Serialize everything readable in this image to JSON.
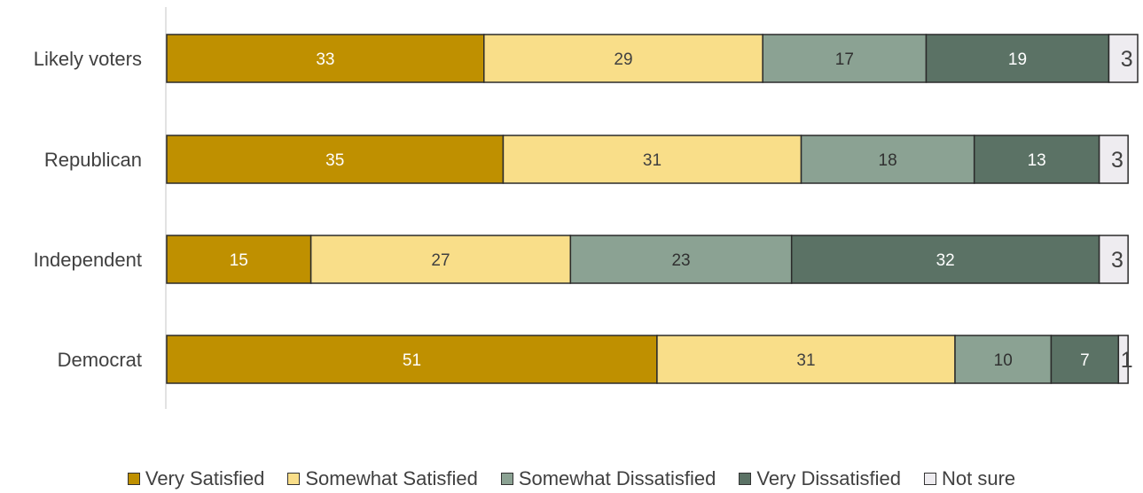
{
  "chart_data": {
    "type": "bar",
    "orientation": "horizontal-stacked",
    "categories": [
      "Likely voters",
      "Republican",
      "Independent",
      "Democrat"
    ],
    "series": [
      {
        "name": "Very Satisfied",
        "values": [
          33,
          35,
          15,
          51
        ],
        "color": "#BF9000"
      },
      {
        "name": "Somewhat Satisfied",
        "values": [
          29,
          31,
          27,
          31
        ],
        "color": "#F9DE89"
      },
      {
        "name": "Somewhat Dissatisfied",
        "values": [
          17,
          18,
          23,
          10
        ],
        "color": "#8BA293"
      },
      {
        "name": "Very Dissatisfied",
        "values": [
          19,
          13,
          32,
          7
        ],
        "color": "#5B7265"
      },
      {
        "name": "Not sure",
        "values": [
          3,
          3,
          3,
          1
        ],
        "color": "#EEECF0"
      }
    ],
    "xlim": [
      0,
      101
    ],
    "grid": false,
    "legend_position": "bottom"
  }
}
